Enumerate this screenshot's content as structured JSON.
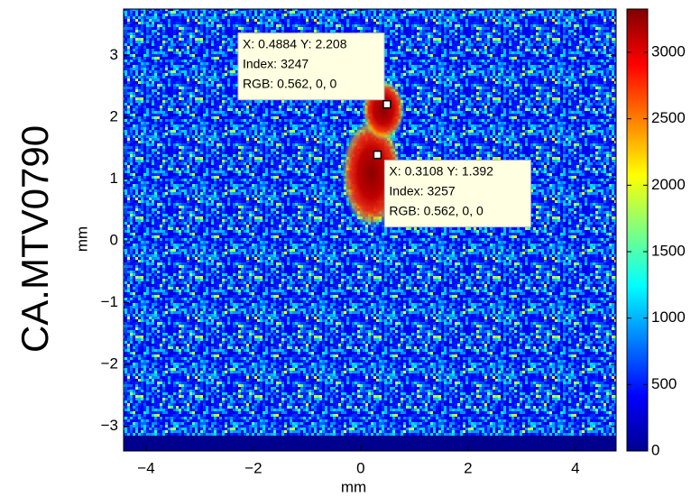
{
  "chart_data": {
    "type": "heatmap",
    "title": "CA.MTV0790",
    "xlabel": "mm",
    "ylabel": "mm",
    "xlim": [
      -4.42,
      4.76
    ],
    "xticks": [
      {
        "value": -4,
        "label": "−4"
      },
      {
        "value": -2,
        "label": "−2"
      },
      0,
      2,
      4
    ],
    "ylim": [
      -3.4,
      3.75
    ],
    "yticks": [
      {
        "value": -3,
        "label": "−3"
      },
      {
        "value": -2,
        "label": "−2"
      },
      {
        "value": -1,
        "label": "−1"
      },
      0,
      1,
      2,
      3
    ],
    "colormap": "jet",
    "clim": [
      0,
      3326
    ],
    "colorbar_ticks": [
      0,
      500,
      1000,
      1500,
      2000,
      2500,
      3000
    ],
    "datatips": [
      {
        "x_label": "X:",
        "x": 0.4884,
        "y_label": "Y:",
        "y": 2.208,
        "index_label": "Index:",
        "index": 3247,
        "rgb_label": "RGB:",
        "rgb": "0.562, 0, 0"
      },
      {
        "x_label": "X:",
        "x": 0.3108,
        "y_label": "Y:",
        "y": 1.392,
        "index_label": "Index:",
        "index": 3257,
        "rgb_label": "RGB:",
        "rgb": "0.562, 0, 0"
      }
    ]
  }
}
